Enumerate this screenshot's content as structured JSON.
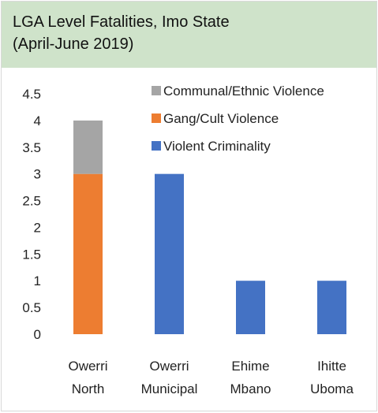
{
  "chart_data": {
    "type": "bar",
    "stacked": true,
    "title": "LGA Level Fatalities, Imo State\n(April-June 2019)",
    "categories": [
      [
        "Owerri",
        "North"
      ],
      [
        "Owerri",
        "Municipal"
      ],
      [
        "Ehime",
        "Mbano"
      ],
      [
        "Ihitte",
        "Uboma"
      ]
    ],
    "series": [
      {
        "name": "Violent Criminality",
        "color": "#4472c4",
        "values": [
          0,
          3,
          1,
          1
        ]
      },
      {
        "name": "Gang/Cult Violence",
        "color": "#ed7d31",
        "values": [
          3,
          0,
          0,
          0
        ]
      },
      {
        "name": "Communal/Ethnic Violence",
        "color": "#a5a5a5",
        "values": [
          1,
          0,
          0,
          0
        ]
      }
    ],
    "legend_order": [
      "Communal/Ethnic Violence",
      "Gang/Cult Violence",
      "Violent Criminality"
    ],
    "ylim": [
      0,
      4.5
    ],
    "yticks": [
      "0",
      "0.5",
      "1",
      "1.5",
      "2",
      "2.5",
      "3",
      "3.5",
      "4",
      "4.5"
    ],
    "xlabel": "",
    "ylabel": "",
    "grid": false,
    "legend_position": "top-right"
  }
}
